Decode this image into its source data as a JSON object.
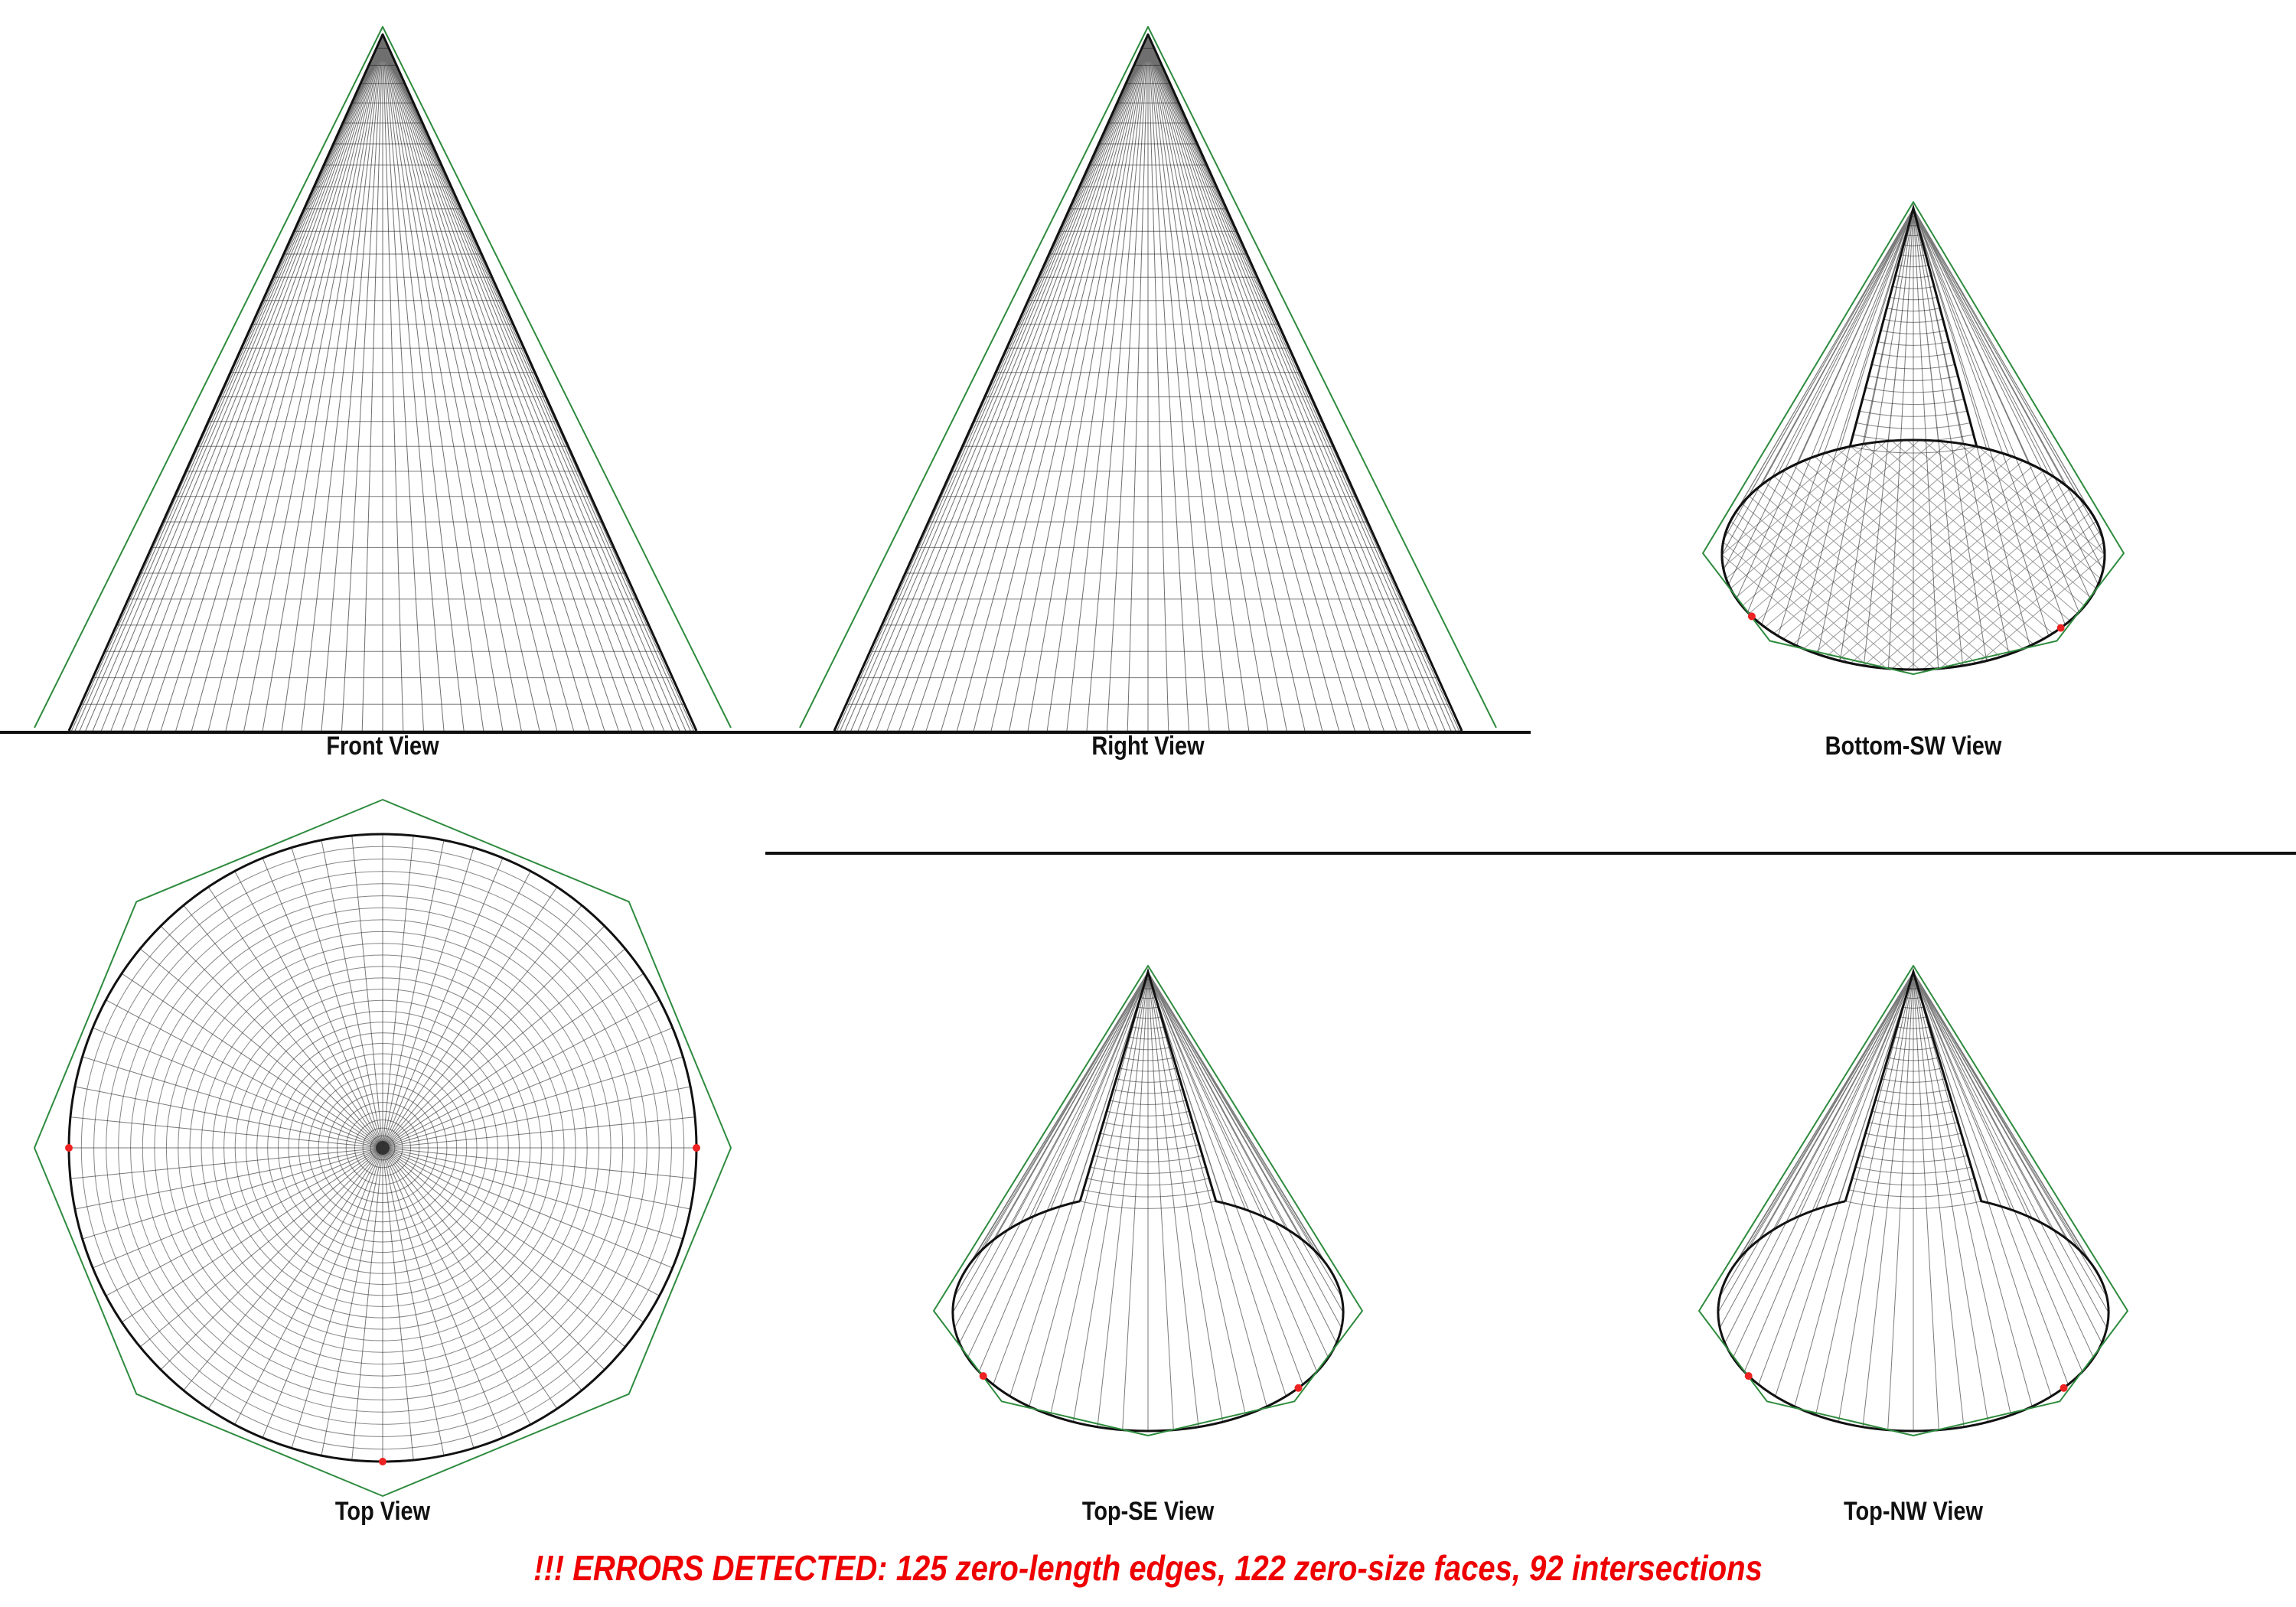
{
  "views": {
    "front": {
      "label": "Front View"
    },
    "right": {
      "label": "Right View"
    },
    "bottom_sw": {
      "label": "Bottom-SW View"
    },
    "top": {
      "label": "Top View"
    },
    "top_se": {
      "label": "Top-SE View"
    },
    "top_nw": {
      "label": "Top-NW View"
    }
  },
  "status": {
    "error_message": "!!! ERRORS DETECTED: 125 zero-length edges, 122 zero-size faces, 92 intersections"
  },
  "colors": {
    "mesh": "#222222",
    "bounding_hull": "#2e8b3e",
    "error_marker": "#ee2222",
    "error_text": "#ee0000"
  }
}
